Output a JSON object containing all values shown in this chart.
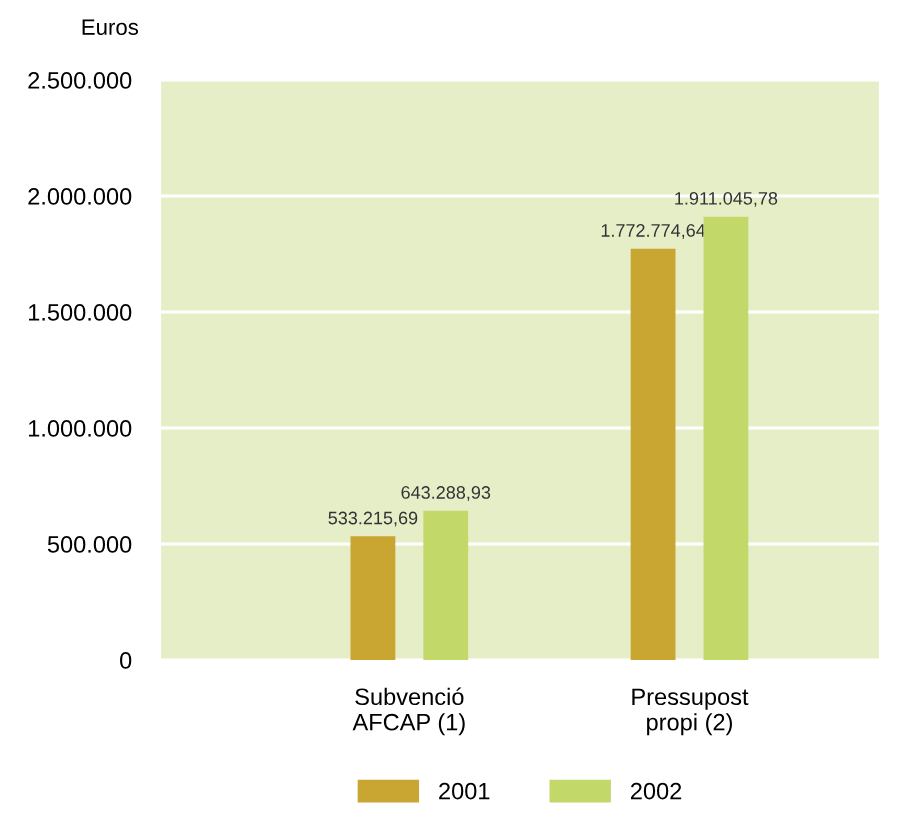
{
  "chart_data": {
    "type": "bar",
    "ylabel": "Euros",
    "categories": [
      "Subvenció\nAFCAP (1)",
      "Pressupost\npropi (2)"
    ],
    "series": [
      {
        "name": "2001",
        "color": "#c9a632",
        "values": [
          533215.69,
          1772774.64
        ],
        "value_labels": [
          "533.215,69",
          "1.772.774,64"
        ]
      },
      {
        "name": "2002",
        "color": "#c2d96a",
        "values": [
          643288.93,
          1911045.78
        ],
        "value_labels": [
          "643.288,93",
          "1.911.045,78"
        ]
      }
    ],
    "ylim": [
      0,
      2500000
    ],
    "yticks": [
      0,
      {
        "value": 500000,
        "label": "500.000"
      },
      {
        "value": 1000000,
        "label": "1.000.000"
      },
      {
        "value": 1500000,
        "label": "1.500.000"
      },
      {
        "value": 2000000,
        "label": "2.000.000"
      },
      {
        "value": 2500000,
        "label": "2.500.000"
      }
    ],
    "grid": "y",
    "legend": "bottom"
  }
}
